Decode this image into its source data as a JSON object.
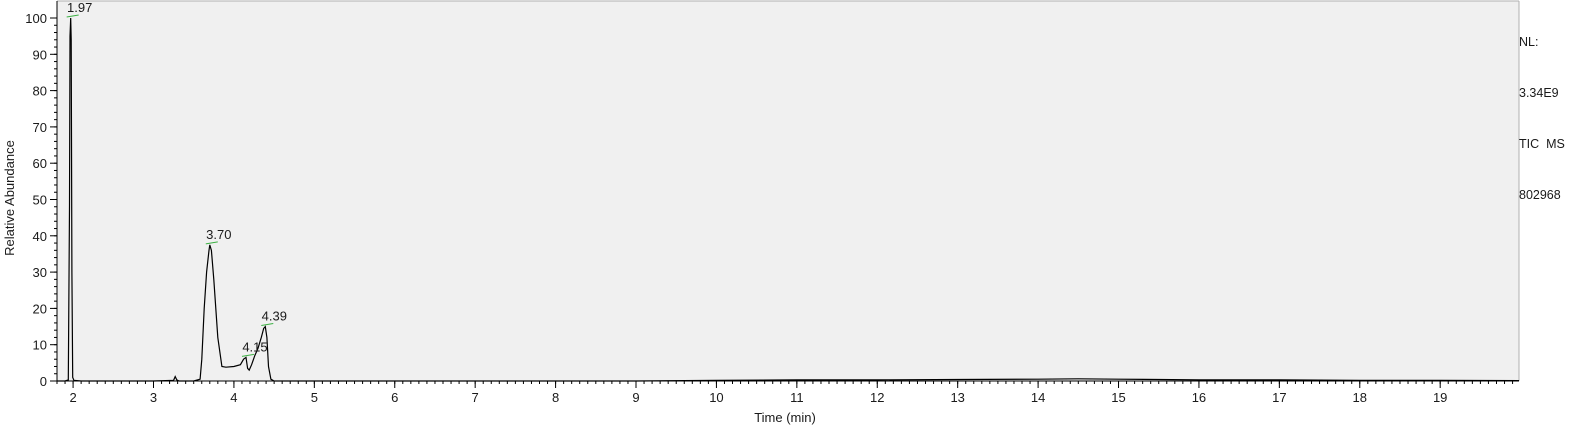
{
  "info": {
    "nl_label": "NL:",
    "nl_value": "3.34E9",
    "scan_filter": "TIC  MS",
    "file_name": "802968"
  },
  "chart_data": {
    "type": "line",
    "xlabel": "Time (min)",
    "ylabel": "Relative Abundance",
    "xlim": [
      1.8,
      19.98
    ],
    "ylim": [
      0,
      100
    ],
    "x_ticks": [
      2,
      3,
      4,
      5,
      6,
      7,
      8,
      9,
      10,
      11,
      12,
      13,
      14,
      15,
      16,
      17,
      18,
      19
    ],
    "y_ticks": [
      0,
      10,
      20,
      30,
      40,
      50,
      60,
      70,
      80,
      90,
      100
    ],
    "grid": false,
    "colors": {
      "trace": "#000000",
      "plot_bg": "#f0f0f0",
      "label_leader": "#3cb043"
    },
    "series": [
      {
        "x": [
          1.8,
          1.9,
          1.94,
          1.955,
          1.962,
          1.97,
          1.976,
          1.985,
          1.995,
          2.01,
          2.1,
          2.5,
          3.0,
          3.25,
          3.27,
          3.29,
          3.32,
          3.5,
          3.58,
          3.6,
          3.63,
          3.66,
          3.69,
          3.7,
          3.72,
          3.75,
          3.8,
          3.85,
          3.9,
          4.0,
          4.08,
          4.12,
          4.15,
          4.17,
          4.19,
          4.22,
          4.26,
          4.3,
          4.34,
          4.37,
          4.39,
          4.41,
          4.43,
          4.46,
          4.5,
          5.0,
          6.0,
          7.0,
          8.0,
          9.0,
          10.0,
          11.0,
          12.0,
          13.0,
          14.0,
          14.5,
          15.0,
          15.5,
          16.0,
          17.0,
          18.0,
          19.0,
          19.98
        ],
        "y": [
          0,
          0,
          0.3,
          48,
          95,
          100,
          94,
          30,
          1,
          0.2,
          0,
          0,
          0,
          0.2,
          1.2,
          0.3,
          0,
          0,
          0.5,
          6,
          20,
          30,
          36,
          37.5,
          36,
          28,
          12,
          4,
          3.8,
          4,
          4.5,
          6,
          6.5,
          3.5,
          3,
          4.5,
          7,
          9,
          12,
          14.5,
          15,
          12,
          4,
          0.5,
          0,
          0,
          0,
          0,
          0,
          0,
          0.2,
          0.3,
          0.3,
          0.4,
          0.5,
          0.6,
          0.5,
          0.4,
          0.3,
          0.3,
          0.2,
          0.2,
          0.1
        ]
      }
    ],
    "annotations": [
      {
        "label": "1.97",
        "x": 1.97,
        "y": 100
      },
      {
        "label": "3.70",
        "x": 3.7,
        "y": 37.5
      },
      {
        "label": "4.15",
        "x": 4.15,
        "y": 6.5
      },
      {
        "label": "4.39",
        "x": 4.39,
        "y": 15
      }
    ]
  }
}
